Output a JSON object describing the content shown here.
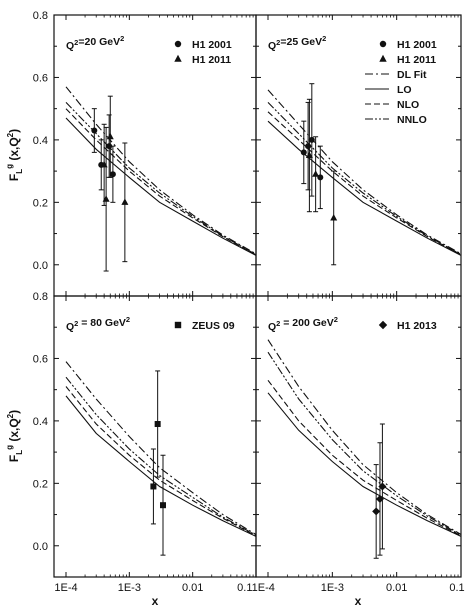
{
  "chart_data": [
    {
      "type": "line",
      "panel": "top-left",
      "annotation": "Q²=20 GeV²",
      "xlim": [
        0.0001,
        0.1
      ],
      "ylim": [
        -0.1,
        0.8
      ],
      "xscale": "log",
      "legend": [
        {
          "label": "H1 2001",
          "marker": "circle"
        },
        {
          "label": "H1 2011",
          "marker": "triangle"
        }
      ],
      "series": [
        {
          "name": "DL Fit",
          "dash": "dashdot",
          "x": [
            0.0001,
            0.0003,
            0.001,
            0.003,
            0.01,
            0.03,
            0.1
          ],
          "y": [
            0.57,
            0.45,
            0.33,
            0.24,
            0.16,
            0.095,
            0.035
          ]
        },
        {
          "name": "LO",
          "dash": "solid",
          "x": [
            0.0001,
            0.0003,
            0.001,
            0.003,
            0.01,
            0.03,
            0.1
          ],
          "y": [
            0.47,
            0.37,
            0.28,
            0.2,
            0.14,
            0.085,
            0.03
          ]
        },
        {
          "name": "NLO",
          "dash": "dashed",
          "x": [
            0.0001,
            0.0003,
            0.001,
            0.003,
            0.01,
            0.03,
            0.1
          ],
          "y": [
            0.5,
            0.4,
            0.3,
            0.22,
            0.15,
            0.09,
            0.032
          ]
        },
        {
          "name": "NNLO",
          "dash": "dashdotdot",
          "x": [
            0.0001,
            0.0003,
            0.001,
            0.003,
            0.01,
            0.03,
            0.1
          ],
          "y": [
            0.52,
            0.42,
            0.31,
            0.23,
            0.155,
            0.092,
            0.033
          ]
        }
      ],
      "points": [
        {
          "set": "H1 2001",
          "x": 0.00028,
          "y": 0.43,
          "err": 0.07
        },
        {
          "set": "H1 2001",
          "x": 0.00036,
          "y": 0.32,
          "err": 0.08
        },
        {
          "set": "H1 2001",
          "x": 0.00048,
          "y": 0.38,
          "err": 0.1
        },
        {
          "set": "H1 2001",
          "x": 0.00055,
          "y": 0.29,
          "err": 0.09
        },
        {
          "set": "H1 2011",
          "x": 0.0004,
          "y": 0.32,
          "err": 0.13
        },
        {
          "set": "H1 2011",
          "x": 0.00043,
          "y": 0.21,
          "err": 0.23
        },
        {
          "set": "H1 2011",
          "x": 0.0005,
          "y": 0.41,
          "err": 0.13
        },
        {
          "set": "H1 2011",
          "x": 0.00085,
          "y": 0.2,
          "err": 0.19
        }
      ]
    },
    {
      "type": "line",
      "panel": "top-right",
      "annotation": "Q²=25 GeV²",
      "xlim": [
        0.0001,
        0.1
      ],
      "ylim": [
        -0.1,
        0.8
      ],
      "xscale": "log",
      "legend": [
        {
          "label": "H1 2001",
          "marker": "circle"
        },
        {
          "label": "H1 2011",
          "marker": "triangle"
        },
        {
          "label": "DL Fit",
          "line": "dashdot"
        },
        {
          "label": "LO",
          "line": "solid"
        },
        {
          "label": "NLO",
          "line": "dashed"
        },
        {
          "label": "NNLO",
          "line": "dashdotdot"
        }
      ],
      "series": [
        {
          "name": "DL Fit",
          "dash": "dashdot",
          "x": [
            0.0001,
            0.0003,
            0.001,
            0.003,
            0.01,
            0.03,
            0.1
          ],
          "y": [
            0.56,
            0.45,
            0.33,
            0.24,
            0.16,
            0.095,
            0.035
          ]
        },
        {
          "name": "LO",
          "dash": "solid",
          "x": [
            0.0001,
            0.0003,
            0.001,
            0.003,
            0.01,
            0.03,
            0.1
          ],
          "y": [
            0.46,
            0.37,
            0.28,
            0.2,
            0.14,
            0.085,
            0.03
          ]
        },
        {
          "name": "NLO",
          "dash": "dashed",
          "x": [
            0.0001,
            0.0003,
            0.001,
            0.003,
            0.01,
            0.03,
            0.1
          ],
          "y": [
            0.49,
            0.4,
            0.3,
            0.22,
            0.15,
            0.09,
            0.032
          ]
        },
        {
          "name": "NNLO",
          "dash": "dashdotdot",
          "x": [
            0.0001,
            0.0003,
            0.001,
            0.003,
            0.01,
            0.03,
            0.1
          ],
          "y": [
            0.52,
            0.42,
            0.31,
            0.23,
            0.155,
            0.092,
            0.033
          ]
        }
      ],
      "points": [
        {
          "set": "H1 2001",
          "x": 0.00036,
          "y": 0.36,
          "err": 0.1
        },
        {
          "set": "H1 2001",
          "x": 0.00042,
          "y": 0.38,
          "err": 0.14
        },
        {
          "set": "H1 2001",
          "x": 0.00048,
          "y": 0.4,
          "err": 0.18
        },
        {
          "set": "H1 2001",
          "x": 0.00065,
          "y": 0.28,
          "err": 0.1
        },
        {
          "set": "H1 2011",
          "x": 0.00044,
          "y": 0.35,
          "err": 0.18
        },
        {
          "set": "H1 2011",
          "x": 0.00055,
          "y": 0.29,
          "err": 0.12
        },
        {
          "set": "H1 2011",
          "x": 0.00105,
          "y": 0.15,
          "err": 0.15
        }
      ]
    },
    {
      "type": "line",
      "panel": "bottom-left",
      "annotation": "Q² = 80 GeV²",
      "xlim": [
        0.0001,
        0.1
      ],
      "ylim": [
        -0.1,
        0.8
      ],
      "xscale": "log",
      "legend": [
        {
          "label": "ZEUS 09",
          "marker": "square"
        }
      ],
      "series": [
        {
          "name": "DL Fit",
          "dash": "dashdot",
          "x": [
            0.0001,
            0.0003,
            0.001,
            0.003,
            0.01,
            0.03,
            0.1
          ],
          "y": [
            0.59,
            0.47,
            0.35,
            0.25,
            0.17,
            0.1,
            0.036
          ]
        },
        {
          "name": "LO",
          "dash": "solid",
          "x": [
            0.0001,
            0.0003,
            0.001,
            0.003,
            0.01,
            0.03,
            0.1
          ],
          "y": [
            0.48,
            0.36,
            0.27,
            0.19,
            0.13,
            0.08,
            0.03
          ]
        },
        {
          "name": "NLO",
          "dash": "dashed",
          "x": [
            0.0001,
            0.0003,
            0.001,
            0.003,
            0.01,
            0.03,
            0.1
          ],
          "y": [
            0.51,
            0.39,
            0.29,
            0.21,
            0.145,
            0.088,
            0.032
          ]
        },
        {
          "name": "NNLO",
          "dash": "dashdotdot",
          "x": [
            0.0001,
            0.0003,
            0.001,
            0.003,
            0.01,
            0.03,
            0.1
          ],
          "y": [
            0.54,
            0.42,
            0.31,
            0.225,
            0.155,
            0.092,
            0.034
          ]
        }
      ],
      "points": [
        {
          "set": "ZEUS 09",
          "x": 0.0024,
          "y": 0.19,
          "err": 0.12
        },
        {
          "set": "ZEUS 09",
          "x": 0.0028,
          "y": 0.39,
          "err": 0.17
        },
        {
          "set": "ZEUS 09",
          "x": 0.0034,
          "y": 0.13,
          "err": 0.16
        }
      ]
    },
    {
      "type": "line",
      "panel": "bottom-right",
      "annotation": "Q² = 200 GeV²",
      "xlim": [
        0.0001,
        0.1
      ],
      "ylim": [
        -0.1,
        0.8
      ],
      "xscale": "log",
      "legend": [
        {
          "label": "H1 2013",
          "marker": "diamond"
        }
      ],
      "series": [
        {
          "name": "DL Fit",
          "dash": "dashdot",
          "x": [
            0.0001,
            0.0003,
            0.001,
            0.003,
            0.01,
            0.03,
            0.1
          ],
          "y": [
            0.66,
            0.51,
            0.37,
            0.26,
            0.17,
            0.1,
            0.036
          ]
        },
        {
          "name": "LO",
          "dash": "solid",
          "x": [
            0.0001,
            0.0003,
            0.001,
            0.003,
            0.01,
            0.03,
            0.1
          ],
          "y": [
            0.49,
            0.37,
            0.27,
            0.19,
            0.13,
            0.08,
            0.03
          ]
        },
        {
          "name": "NLO",
          "dash": "dashed",
          "x": [
            0.0001,
            0.0003,
            0.001,
            0.003,
            0.01,
            0.03,
            0.1
          ],
          "y": [
            0.53,
            0.4,
            0.29,
            0.21,
            0.145,
            0.088,
            0.032
          ]
        },
        {
          "name": "NNLO",
          "dash": "dashdotdot",
          "x": [
            0.0001,
            0.0003,
            0.001,
            0.003,
            0.01,
            0.03,
            0.1
          ],
          "y": [
            0.62,
            0.47,
            0.34,
            0.24,
            0.16,
            0.095,
            0.034
          ]
        }
      ],
      "points": [
        {
          "set": "H1 2013",
          "x": 0.0048,
          "y": 0.11,
          "err": 0.15
        },
        {
          "set": "H1 2013",
          "x": 0.0055,
          "y": 0.15,
          "err": 0.18
        },
        {
          "set": "H1 2013",
          "x": 0.006,
          "y": 0.19,
          "err": 0.2
        }
      ]
    }
  ],
  "axes": {
    "ylabel": "F_L^g (x,Q^2)",
    "xlabel": "x",
    "y_ticks": [
      {
        "value": 0.0,
        "label": "0.0"
      },
      {
        "value": 0.2,
        "label": "0.2"
      },
      {
        "value": 0.4,
        "label": "0.4"
      },
      {
        "value": 0.6,
        "label": "0.6"
      },
      {
        "value": 0.8,
        "label": "0.8"
      }
    ],
    "x_ticks": [
      {
        "value": 0.0001,
        "label": "1E-4"
      },
      {
        "value": 0.001,
        "label": "1E-3"
      },
      {
        "value": 0.01,
        "label": "0.01"
      },
      {
        "value": 0.1,
        "label": "0.1"
      }
    ],
    "x_tick_labels_bottom": [
      "1E-4",
      "1E-3",
      "0.01",
      "0.11E-4",
      "1E-3",
      "0.01",
      "0.1"
    ]
  }
}
